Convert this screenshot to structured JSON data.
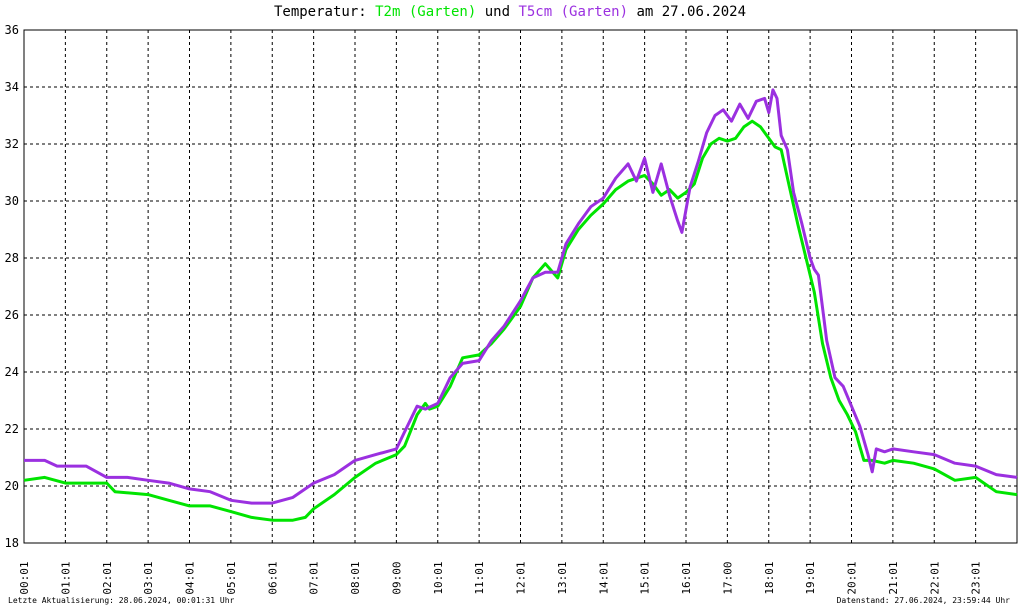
{
  "chart_data": {
    "type": "line",
    "title": {
      "prefix": "Temperatur: ",
      "series1": "T2m (Garten)",
      "connector": " und ",
      "series2": "T5cm (Garten)",
      "suffix": " am 27.06.2024"
    },
    "ylim": [
      18,
      36
    ],
    "yticks": [
      "18",
      "20",
      "22",
      "24",
      "26",
      "28",
      "30",
      "32",
      "34",
      "36"
    ],
    "xlim": [
      0,
      24
    ],
    "xticks": [
      "00:01",
      "01:01",
      "02:01",
      "03:01",
      "04:01",
      "05:01",
      "06:01",
      "07:01",
      "08:01",
      "09:00",
      "10:01",
      "11:01",
      "12:01",
      "13:01",
      "14:01",
      "15:01",
      "16:01",
      "17:00",
      "18:01",
      "19:01",
      "20:01",
      "21:01",
      "22:01",
      "23:01"
    ],
    "grid": true,
    "colors": {
      "T2m": "#00e400",
      "T5cm": "#9b30e0"
    },
    "series": [
      {
        "name": "T2m (Garten)",
        "color": "#00e400",
        "points": [
          [
            0,
            20.2
          ],
          [
            0.5,
            20.3
          ],
          [
            1,
            20.1
          ],
          [
            1.5,
            20.1
          ],
          [
            2,
            20.1
          ],
          [
            2.2,
            19.8
          ],
          [
            3,
            19.7
          ],
          [
            3.5,
            19.5
          ],
          [
            4,
            19.3
          ],
          [
            4.5,
            19.3
          ],
          [
            5,
            19.1
          ],
          [
            5.5,
            18.9
          ],
          [
            6,
            18.8
          ],
          [
            6.5,
            18.8
          ],
          [
            6.8,
            18.9
          ],
          [
            7,
            19.2
          ],
          [
            7.5,
            19.7
          ],
          [
            8,
            20.3
          ],
          [
            8.5,
            20.8
          ],
          [
            9,
            21.1
          ],
          [
            9.2,
            21.4
          ],
          [
            9.5,
            22.5
          ],
          [
            9.7,
            22.9
          ],
          [
            9.8,
            22.7
          ],
          [
            10,
            22.8
          ],
          [
            10.3,
            23.5
          ],
          [
            10.6,
            24.5
          ],
          [
            11,
            24.6
          ],
          [
            11.3,
            25
          ],
          [
            11.6,
            25.5
          ],
          [
            12,
            26.3
          ],
          [
            12.3,
            27.3
          ],
          [
            12.6,
            27.8
          ],
          [
            12.9,
            27.3
          ],
          [
            13.1,
            28.3
          ],
          [
            13.4,
            29
          ],
          [
            13.7,
            29.5
          ],
          [
            14,
            29.9
          ],
          [
            14.3,
            30.4
          ],
          [
            14.6,
            30.7
          ],
          [
            15,
            30.9
          ],
          [
            15.2,
            30.6
          ],
          [
            15.4,
            30.2
          ],
          [
            15.6,
            30.4
          ],
          [
            15.8,
            30.1
          ],
          [
            16,
            30.3
          ],
          [
            16.2,
            30.6
          ],
          [
            16.4,
            31.5
          ],
          [
            16.6,
            32
          ],
          [
            16.8,
            32.2
          ],
          [
            17,
            32.1
          ],
          [
            17.2,
            32.2
          ],
          [
            17.4,
            32.6
          ],
          [
            17.6,
            32.8
          ],
          [
            17.8,
            32.6
          ],
          [
            18,
            32.2
          ],
          [
            18.15,
            31.9
          ],
          [
            18.3,
            31.8
          ],
          [
            18.5,
            30.5
          ],
          [
            18.7,
            29.2
          ],
          [
            18.9,
            28
          ],
          [
            19.1,
            26.8
          ],
          [
            19.3,
            25
          ],
          [
            19.5,
            23.8
          ],
          [
            19.7,
            23
          ],
          [
            19.9,
            22.5
          ],
          [
            20.1,
            21.9
          ],
          [
            20.3,
            20.9
          ],
          [
            20.5,
            20.9
          ],
          [
            20.8,
            20.8
          ],
          [
            21,
            20.9
          ],
          [
            21.5,
            20.8
          ],
          [
            22,
            20.6
          ],
          [
            22.5,
            20.2
          ],
          [
            23,
            20.3
          ],
          [
            23.2,
            20.1
          ],
          [
            23.5,
            19.8
          ],
          [
            24,
            19.7
          ]
        ]
      },
      {
        "name": "T5cm (Garten)",
        "color": "#9b30e0",
        "points": [
          [
            0,
            20.9
          ],
          [
            0.5,
            20.9
          ],
          [
            0.8,
            20.7
          ],
          [
            1.5,
            20.7
          ],
          [
            2,
            20.3
          ],
          [
            2.5,
            20.3
          ],
          [
            3,
            20.2
          ],
          [
            3.5,
            20.1
          ],
          [
            4,
            19.9
          ],
          [
            4.5,
            19.8
          ],
          [
            5,
            19.5
          ],
          [
            5.5,
            19.4
          ],
          [
            6,
            19.4
          ],
          [
            6.5,
            19.6
          ],
          [
            7,
            20.1
          ],
          [
            7.5,
            20.4
          ],
          [
            8,
            20.9
          ],
          [
            8.5,
            21.1
          ],
          [
            9,
            21.3
          ],
          [
            9.2,
            21.9
          ],
          [
            9.5,
            22.8
          ],
          [
            9.7,
            22.7
          ],
          [
            10,
            22.9
          ],
          [
            10.3,
            23.8
          ],
          [
            10.6,
            24.3
          ],
          [
            11,
            24.4
          ],
          [
            11.3,
            25.1
          ],
          [
            11.6,
            25.6
          ],
          [
            12,
            26.5
          ],
          [
            12.3,
            27.3
          ],
          [
            12.6,
            27.5
          ],
          [
            12.9,
            27.5
          ],
          [
            13.1,
            28.5
          ],
          [
            13.4,
            29.2
          ],
          [
            13.7,
            29.8
          ],
          [
            14,
            30.1
          ],
          [
            14.3,
            30.8
          ],
          [
            14.6,
            31.3
          ],
          [
            14.8,
            30.7
          ],
          [
            15,
            31.5
          ],
          [
            15.2,
            30.3
          ],
          [
            15.4,
            31.3
          ],
          [
            15.6,
            30.2
          ],
          [
            15.8,
            29.3
          ],
          [
            15.9,
            28.9
          ],
          [
            16.1,
            30.5
          ],
          [
            16.3,
            31.4
          ],
          [
            16.5,
            32.4
          ],
          [
            16.7,
            33
          ],
          [
            16.9,
            33.2
          ],
          [
            17.1,
            32.8
          ],
          [
            17.3,
            33.4
          ],
          [
            17.5,
            32.9
          ],
          [
            17.7,
            33.5
          ],
          [
            17.9,
            33.6
          ],
          [
            18,
            33.1
          ],
          [
            18.1,
            33.9
          ],
          [
            18.2,
            33.6
          ],
          [
            18.3,
            32.3
          ],
          [
            18.45,
            31.8
          ],
          [
            18.6,
            30.3
          ],
          [
            18.8,
            29.2
          ],
          [
            19,
            28
          ],
          [
            19.1,
            27.6
          ],
          [
            19.2,
            27.4
          ],
          [
            19.4,
            25.1
          ],
          [
            19.6,
            23.8
          ],
          [
            19.8,
            23.5
          ],
          [
            20,
            22.8
          ],
          [
            20.2,
            22.1
          ],
          [
            20.4,
            21.1
          ],
          [
            20.5,
            20.5
          ],
          [
            20.6,
            21.3
          ],
          [
            20.8,
            21.2
          ],
          [
            21,
            21.3
          ],
          [
            21.5,
            21.2
          ],
          [
            22,
            21.1
          ],
          [
            22.5,
            20.8
          ],
          [
            23,
            20.7
          ],
          [
            23.5,
            20.4
          ],
          [
            24,
            20.3
          ]
        ]
      }
    ]
  },
  "footer": {
    "left": "Letzte Aktualisierung: 28.06.2024, 00:01:31 Uhr",
    "right": "Datenstand: 27.06.2024, 23:59:44 Uhr"
  }
}
